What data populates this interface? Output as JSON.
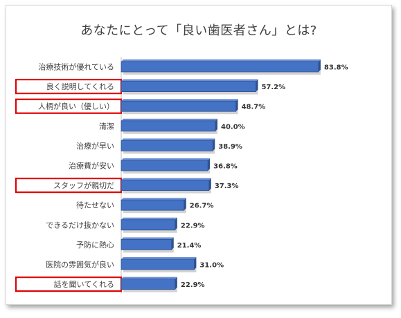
{
  "chart_data": {
    "type": "bar",
    "orientation": "horizontal",
    "title": "あなたにとって「良い歯医者さん」とは?",
    "categories": [
      "治療技術が優れている",
      "良く説明してくれる",
      "人柄が良い（優しい）",
      "清潔",
      "治療が早い",
      "治療費が安い",
      "スタッフが親切だ",
      "待たせない",
      "できるだけ抜かない",
      "予防に熱心",
      "医院の雰囲気が良い",
      "話を聞いてくれる"
    ],
    "values": [
      83.8,
      57.2,
      48.7,
      40.0,
      38.9,
      36.8,
      37.3,
      26.7,
      22.9,
      21.4,
      31.0,
      22.9
    ],
    "value_labels": [
      "83.8%",
      "57.2%",
      "48.7%",
      "40.0%",
      "38.9%",
      "36.8%",
      "37.3%",
      "26.7%",
      "22.9%",
      "21.4%",
      "31.0%",
      "22.9%"
    ],
    "highlighted": [
      "良く説明してくれる",
      "人柄が良い（優しい）",
      "スタッフが親切だ",
      "話を聞いてくれる"
    ],
    "xlim": [
      0,
      100
    ],
    "grid": false,
    "legend": "none",
    "colors": {
      "bar": "#4472c4",
      "bar_dark": "#2f528f",
      "bar_shadow": "#bfbfbf",
      "highlight_box": "#e00000"
    }
  }
}
